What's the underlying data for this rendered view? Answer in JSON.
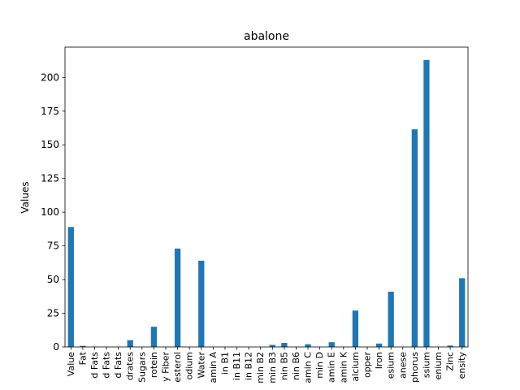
{
  "chart_data": {
    "type": "bar",
    "title": "abalone",
    "xlabel": "",
    "ylabel": "Values",
    "ylim": [
      0,
      222.5
    ],
    "yticks": [
      0,
      25,
      50,
      75,
      100,
      125,
      150,
      175,
      200
    ],
    "grid": false,
    "legend": "none",
    "bar_color": "#1f77b4",
    "categories": [
      "Value",
      "Fat",
      "d Fats",
      "d Fats",
      "d Fats",
      "drates",
      "Sugars",
      "rotein",
      "y Fiber",
      "esterol",
      "odium",
      "Water",
      "amin A",
      "in B1",
      "in B11",
      "in B12",
      "min B2",
      "min B3",
      "nin B5",
      "nin B6",
      "amin C",
      "min D",
      "amin E",
      "amin K",
      "alcium",
      "opper",
      "Iron",
      "esium",
      "anese",
      "phorus",
      "ssium",
      "enium",
      "Zinc",
      "ensity"
    ],
    "values": [
      89,
      0.8,
      0.2,
      0.1,
      0.1,
      5,
      0,
      15,
      0,
      73,
      0,
      64,
      0,
      0,
      0,
      0,
      0,
      1.5,
      3,
      0,
      2,
      0,
      3.5,
      0,
      27,
      0,
      2.5,
      41,
      0,
      161.5,
      213,
      0,
      1,
      51
    ]
  }
}
